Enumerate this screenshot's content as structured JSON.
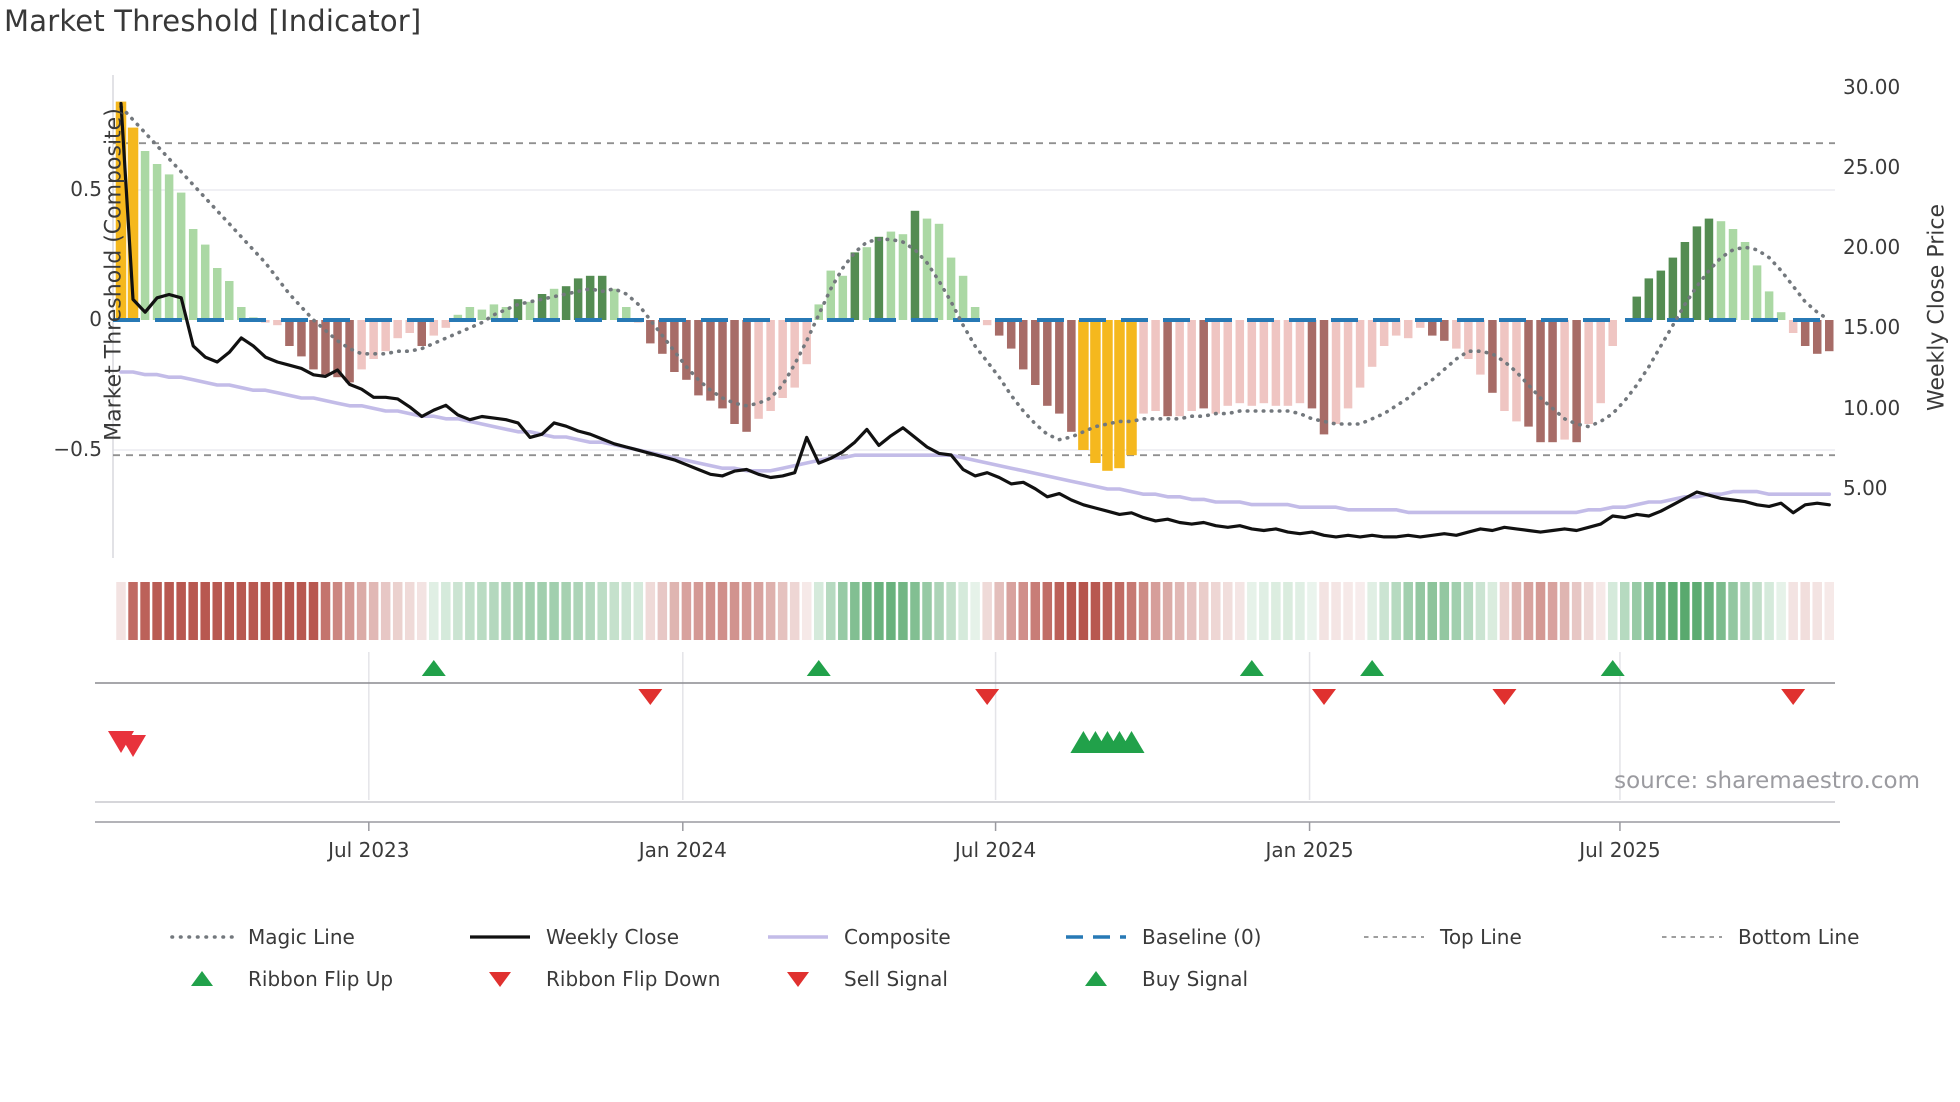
{
  "header": {
    "title": "Market Threshold [Indicator]"
  },
  "source": "source: sharemaestro.com",
  "axes": {
    "left_label": "Market Threshold (Composite)",
    "right_label": "Weekly Close Price",
    "left_ticks": [
      {
        "label": "0.5",
        "v": 0.5
      },
      {
        "label": "0",
        "v": 0.0
      },
      {
        "label": "−0.5",
        "v": -0.5
      }
    ],
    "right_ticks": [
      {
        "label": "30.00",
        "p": 30
      },
      {
        "label": "25.00",
        "p": 25
      },
      {
        "label": "20.00",
        "p": 20
      },
      {
        "label": "15.00",
        "p": 15
      },
      {
        "label": "10.00",
        "p": 10
      },
      {
        "label": "5.00",
        "p": 5
      }
    ],
    "x_ticks": [
      {
        "label": "Jul 2023",
        "week": 20.6
      },
      {
        "label": "Jan 2024",
        "week": 46.7
      },
      {
        "label": "Jul 2024",
        "week": 72.7
      },
      {
        "label": "Jan 2025",
        "week": 98.8
      },
      {
        "label": "Jul 2025",
        "week": 124.6
      }
    ]
  },
  "chart_data": {
    "type": "mixed",
    "n_weeks": 143,
    "baseline": 0,
    "top_line": 0.68,
    "bottom_line": -0.52,
    "left_axis_range": [
      -0.92,
      0.94
    ],
    "right_axis_range": [
      0.5,
      30.8
    ],
    "grid_values": [
      0.5,
      -0.5
    ],
    "series": {
      "histogram": {
        "name": "Market Threshold bars",
        "values": [
          0.84,
          0.74,
          0.65,
          0.6,
          0.56,
          0.49,
          0.35,
          0.29,
          0.2,
          0.15,
          0.05,
          0.01,
          -0.01,
          -0.02,
          -0.1,
          -0.14,
          -0.19,
          -0.21,
          -0.22,
          -0.24,
          -0.19,
          -0.15,
          -0.12,
          -0.07,
          -0.05,
          -0.1,
          -0.06,
          -0.03,
          0.02,
          0.05,
          0.04,
          0.06,
          0.05,
          0.08,
          0.07,
          0.1,
          0.12,
          0.13,
          0.16,
          0.17,
          0.17,
          0.12,
          0.05,
          -0.01,
          -0.09,
          -0.13,
          -0.2,
          -0.23,
          -0.29,
          -0.31,
          -0.34,
          -0.4,
          -0.43,
          -0.38,
          -0.35,
          -0.3,
          -0.26,
          -0.17,
          0.06,
          0.19,
          0.17,
          0.26,
          0.28,
          0.32,
          0.34,
          0.33,
          0.42,
          0.39,
          0.37,
          0.24,
          0.17,
          0.05,
          -0.02,
          -0.06,
          -0.11,
          -0.19,
          -0.25,
          -0.33,
          -0.36,
          -0.43,
          -0.5,
          -0.55,
          -0.58,
          -0.57,
          -0.52,
          -0.36,
          -0.35,
          -0.37,
          -0.37,
          -0.35,
          -0.34,
          -0.36,
          -0.33,
          -0.32,
          -0.33,
          -0.32,
          -0.33,
          -0.33,
          -0.32,
          -0.34,
          -0.44,
          -0.4,
          -0.34,
          -0.26,
          -0.18,
          -0.1,
          -0.06,
          -0.07,
          -0.03,
          -0.06,
          -0.08,
          -0.11,
          -0.15,
          -0.21,
          -0.28,
          -0.35,
          -0.39,
          -0.41,
          -0.47,
          -0.47,
          -0.46,
          -0.47,
          -0.4,
          -0.32,
          -0.1,
          0.0,
          0.09,
          0.16,
          0.19,
          0.24,
          0.3,
          0.36,
          0.39,
          0.38,
          0.35,
          0.3,
          0.21,
          0.11,
          0.03,
          -0.05,
          -0.1,
          -0.13,
          -0.12
        ],
        "palette": [
          "y",
          "y",
          "lg",
          "lg",
          "lg",
          "lg",
          "lg",
          "lg",
          "lg",
          "lg",
          "lg",
          "lg",
          "lp",
          "lp",
          "dm",
          "dm",
          "dm",
          "dm",
          "dm",
          "dm",
          "lp",
          "lp",
          "lp",
          "lp",
          "lp",
          "dm",
          "lp",
          "lp",
          "lg",
          "lg",
          "lg",
          "lg",
          "lg",
          "dg",
          "lg",
          "dg",
          "lg",
          "dg",
          "dg",
          "dg",
          "dg",
          "lg",
          "lg",
          "lp",
          "dm",
          "dm",
          "dm",
          "dm",
          "dm",
          "dm",
          "dm",
          "dm",
          "dm",
          "lp",
          "lp",
          "lp",
          "lp",
          "lp",
          "lg",
          "lg",
          "lg",
          "dg",
          "lg",
          "dg",
          "lg",
          "lg",
          "dg",
          "lg",
          "lg",
          "lg",
          "lg",
          "lg",
          "lp",
          "dm",
          "dm",
          "dm",
          "dm",
          "dm",
          "dm",
          "dm",
          "y",
          "y",
          "y",
          "y",
          "y",
          "lp",
          "lp",
          "dm",
          "lp",
          "lp",
          "dm",
          "lp",
          "lp",
          "lp",
          "lp",
          "lp",
          "lp",
          "lp",
          "lp",
          "dm",
          "dm",
          "lp",
          "lp",
          "lp",
          "lp",
          "lp",
          "lp",
          "lp",
          "lp",
          "dm",
          "dm",
          "lp",
          "lp",
          "lp",
          "dm",
          "lp",
          "lp",
          "dm",
          "dm",
          "dm",
          "lp",
          "dm",
          "lp",
          "lp",
          "lp",
          "none",
          "dg",
          "dg",
          "dg",
          "dg",
          "dg",
          "dg",
          "dg",
          "lg",
          "lg",
          "lg",
          "lg",
          "lg",
          "lg",
          "lp",
          "dm",
          "dm",
          "dm"
        ]
      },
      "weekly_close": {
        "name": "Weekly Close",
        "values": [
          29.0,
          16.8,
          16.0,
          16.9,
          17.1,
          16.9,
          13.9,
          13.2,
          12.9,
          13.5,
          14.4,
          13.9,
          13.2,
          12.9,
          12.7,
          12.5,
          12.1,
          12.0,
          12.4,
          11.5,
          11.2,
          10.7,
          10.7,
          10.6,
          10.1,
          9.5,
          9.9,
          10.2,
          9.6,
          9.3,
          9.5,
          9.4,
          9.3,
          9.1,
          8.2,
          8.4,
          9.1,
          8.9,
          8.6,
          8.4,
          8.1,
          7.8,
          7.6,
          7.4,
          7.2,
          7.0,
          6.8,
          6.5,
          6.2,
          5.9,
          5.8,
          6.1,
          6.2,
          5.9,
          5.7,
          5.8,
          6.0,
          8.2,
          6.6,
          6.9,
          7.3,
          7.9,
          8.7,
          7.7,
          8.3,
          8.8,
          8.2,
          7.6,
          7.2,
          7.1,
          6.2,
          5.8,
          6.0,
          5.7,
          5.3,
          5.4,
          5.0,
          4.5,
          4.7,
          4.3,
          4.0,
          3.8,
          3.6,
          3.4,
          3.5,
          3.2,
          3.0,
          3.1,
          2.9,
          2.8,
          2.9,
          2.7,
          2.6,
          2.7,
          2.5,
          2.4,
          2.5,
          2.3,
          2.2,
          2.3,
          2.1,
          2.0,
          2.1,
          2.0,
          2.1,
          2.0,
          2.0,
          2.1,
          2.0,
          2.1,
          2.2,
          2.1,
          2.3,
          2.5,
          2.4,
          2.6,
          2.5,
          2.4,
          2.3,
          2.4,
          2.5,
          2.4,
          2.6,
          2.8,
          3.3,
          3.2,
          3.4,
          3.3,
          3.6,
          4.0,
          4.4,
          4.8,
          4.6,
          4.4,
          4.3,
          4.2,
          4.0,
          3.9,
          4.1,
          3.5,
          4.0,
          4.1,
          4.0
        ]
      },
      "composite": {
        "name": "Composite",
        "values": [
          -0.2,
          -0.2,
          -0.21,
          -0.21,
          -0.22,
          -0.22,
          -0.23,
          -0.24,
          -0.25,
          -0.25,
          -0.26,
          -0.27,
          -0.27,
          -0.28,
          -0.29,
          -0.3,
          -0.3,
          -0.31,
          -0.32,
          -0.33,
          -0.33,
          -0.34,
          -0.35,
          -0.35,
          -0.36,
          -0.37,
          -0.37,
          -0.38,
          -0.38,
          -0.39,
          -0.4,
          -0.41,
          -0.42,
          -0.43,
          -0.43,
          -0.44,
          -0.45,
          -0.45,
          -0.46,
          -0.47,
          -0.47,
          -0.48,
          -0.49,
          -0.5,
          -0.51,
          -0.52,
          -0.53,
          -0.54,
          -0.55,
          -0.56,
          -0.57,
          -0.57,
          -0.58,
          -0.58,
          -0.58,
          -0.57,
          -0.56,
          -0.55,
          -0.54,
          -0.53,
          -0.53,
          -0.52,
          -0.52,
          -0.52,
          -0.52,
          -0.52,
          -0.52,
          -0.52,
          -0.52,
          -0.52,
          -0.53,
          -0.54,
          -0.55,
          -0.56,
          -0.57,
          -0.58,
          -0.59,
          -0.6,
          -0.61,
          -0.62,
          -0.63,
          -0.64,
          -0.65,
          -0.65,
          -0.66,
          -0.67,
          -0.67,
          -0.68,
          -0.68,
          -0.69,
          -0.69,
          -0.7,
          -0.7,
          -0.7,
          -0.71,
          -0.71,
          -0.71,
          -0.71,
          -0.72,
          -0.72,
          -0.72,
          -0.72,
          -0.73,
          -0.73,
          -0.73,
          -0.73,
          -0.73,
          -0.74,
          -0.74,
          -0.74,
          -0.74,
          -0.74,
          -0.74,
          -0.74,
          -0.74,
          -0.74,
          -0.74,
          -0.74,
          -0.74,
          -0.74,
          -0.74,
          -0.74,
          -0.73,
          -0.73,
          -0.72,
          -0.72,
          -0.71,
          -0.7,
          -0.7,
          -0.69,
          -0.68,
          -0.68,
          -0.67,
          -0.67,
          -0.66,
          -0.66,
          -0.66,
          -0.67,
          -0.67,
          -0.67,
          -0.67,
          -0.67,
          -0.67
        ]
      },
      "magic_line": {
        "name": "Magic Line",
        "values": [
          0.82,
          0.77,
          0.72,
          0.67,
          0.62,
          0.57,
          0.52,
          0.47,
          0.42,
          0.37,
          0.32,
          0.27,
          0.22,
          0.16,
          0.1,
          0.05,
          0.0,
          -0.04,
          -0.08,
          -0.11,
          -0.13,
          -0.13,
          -0.13,
          -0.12,
          -0.12,
          -0.11,
          -0.09,
          -0.07,
          -0.05,
          -0.03,
          -0.01,
          0.02,
          0.04,
          0.06,
          0.07,
          0.08,
          0.09,
          0.1,
          0.11,
          0.12,
          0.11,
          0.12,
          0.1,
          0.06,
          0.0,
          -0.06,
          -0.12,
          -0.18,
          -0.23,
          -0.27,
          -0.3,
          -0.32,
          -0.33,
          -0.32,
          -0.3,
          -0.25,
          -0.17,
          -0.08,
          0.02,
          0.12,
          0.2,
          0.26,
          0.3,
          0.31,
          0.31,
          0.3,
          0.27,
          0.22,
          0.15,
          0.07,
          -0.02,
          -0.1,
          -0.16,
          -0.22,
          -0.29,
          -0.35,
          -0.4,
          -0.44,
          -0.46,
          -0.45,
          -0.43,
          -0.41,
          -0.4,
          -0.39,
          -0.39,
          -0.38,
          -0.38,
          -0.38,
          -0.38,
          -0.37,
          -0.37,
          -0.36,
          -0.36,
          -0.35,
          -0.35,
          -0.35,
          -0.35,
          -0.35,
          -0.36,
          -0.38,
          -0.39,
          -0.4,
          -0.4,
          -0.4,
          -0.38,
          -0.36,
          -0.33,
          -0.3,
          -0.26,
          -0.23,
          -0.19,
          -0.15,
          -0.12,
          -0.12,
          -0.13,
          -0.16,
          -0.2,
          -0.25,
          -0.3,
          -0.34,
          -0.38,
          -0.4,
          -0.41,
          -0.39,
          -0.36,
          -0.31,
          -0.25,
          -0.18,
          -0.1,
          -0.02,
          0.06,
          0.13,
          0.19,
          0.24,
          0.27,
          0.28,
          0.27,
          0.24,
          0.19,
          0.13,
          0.07,
          0.03,
          0.0
        ]
      },
      "ribbon": {
        "name": "Ribbon",
        "values": [
          -0.15,
          -0.8,
          -0.85,
          -0.88,
          -0.9,
          -0.9,
          -0.9,
          -0.9,
          -0.9,
          -0.9,
          -0.9,
          -0.9,
          -0.9,
          -0.9,
          -0.9,
          -0.9,
          -0.9,
          -0.75,
          -0.65,
          -0.55,
          -0.45,
          -0.38,
          -0.3,
          -0.25,
          -0.2,
          -0.15,
          0.15,
          0.2,
          0.25,
          0.3,
          0.33,
          0.36,
          0.4,
          0.42,
          0.44,
          0.45,
          0.45,
          0.43,
          0.4,
          0.36,
          0.32,
          0.28,
          0.24,
          0.2,
          -0.2,
          -0.3,
          -0.4,
          -0.5,
          -0.55,
          -0.58,
          -0.6,
          -0.58,
          -0.55,
          -0.5,
          -0.42,
          -0.33,
          -0.22,
          -0.12,
          0.2,
          0.35,
          0.5,
          0.6,
          0.68,
          0.72,
          0.72,
          0.68,
          0.6,
          0.5,
          0.4,
          0.3,
          0.2,
          0.12,
          -0.2,
          -0.35,
          -0.5,
          -0.6,
          -0.7,
          -0.78,
          -0.85,
          -0.9,
          -0.92,
          -0.9,
          -0.85,
          -0.8,
          -0.72,
          -0.62,
          -0.52,
          -0.45,
          -0.38,
          -0.32,
          -0.27,
          -0.22,
          -0.18,
          -0.14,
          0.12,
          0.15,
          0.17,
          0.18,
          0.15,
          0.1,
          -0.15,
          -0.14,
          -0.12,
          -0.1,
          0.15,
          0.25,
          0.35,
          0.45,
          0.52,
          0.55,
          0.52,
          0.45,
          0.35,
          0.25,
          0.18,
          -0.25,
          -0.4,
          -0.5,
          -0.55,
          -0.5,
          -0.4,
          -0.3,
          -0.2,
          -0.12,
          0.2,
          0.35,
          0.5,
          0.62,
          0.72,
          0.78,
          0.8,
          0.78,
          0.72,
          0.63,
          0.52,
          0.4,
          0.3,
          0.2,
          0.12,
          -0.15,
          -0.18,
          -0.15,
          -0.12
        ]
      }
    },
    "signals": {
      "ribbon_flip_up_weeks": [
        26,
        58,
        94,
        104,
        124
      ],
      "ribbon_flip_down_weeks": [
        44,
        72,
        100,
        115,
        139
      ],
      "sell_signal_weeks": [
        0,
        1
      ],
      "buy_signal_weeks": [
        80,
        81,
        82,
        83,
        84
      ]
    }
  },
  "legend": {
    "rows": [
      [
        {
          "type": "dotted",
          "label": "Magic Line"
        },
        {
          "type": "solid-black",
          "label": "Weekly Close"
        },
        {
          "type": "solid-lavender",
          "label": "Composite"
        },
        {
          "type": "dashed-blue",
          "label": "Baseline (0)"
        },
        {
          "type": "smalldash",
          "label": "Top Line"
        },
        {
          "type": "smalldash",
          "label": "Bottom Line"
        }
      ],
      [
        {
          "type": "tri-up",
          "label": "Ribbon Flip Up"
        },
        {
          "type": "tri-down",
          "label": "Ribbon Flip Down"
        },
        {
          "type": "tri-down",
          "label": "Sell Signal"
        },
        {
          "type": "tri-up",
          "label": "Buy Signal"
        }
      ]
    ]
  },
  "colors": {
    "hist_light_green": "#abd8a4",
    "hist_dark_green": "#548c52",
    "hist_light_pink": "#efc5c2",
    "hist_dark_red": "#a76c67",
    "hist_highlight": "#f5b81e",
    "weekly_close": "#111111",
    "composite": "#c3bce8",
    "magic_line": "#73787d",
    "baseline": "#2779b5",
    "top_bottom_line": "#909090",
    "ribbon_green": "#2f944a",
    "ribbon_red": "#b0453c",
    "flip_up": "#21a14a",
    "flip_down": "#e0312f",
    "buy": "#21a14a",
    "sell": "#e8323c",
    "grid": "#ececf0",
    "spine": "#d9d9de",
    "panel_line_dark": "#8a8a8f",
    "panel_line_light": "#c8c8cd",
    "text": "#3a3a3a",
    "muted_text": "#9b9ba0"
  }
}
